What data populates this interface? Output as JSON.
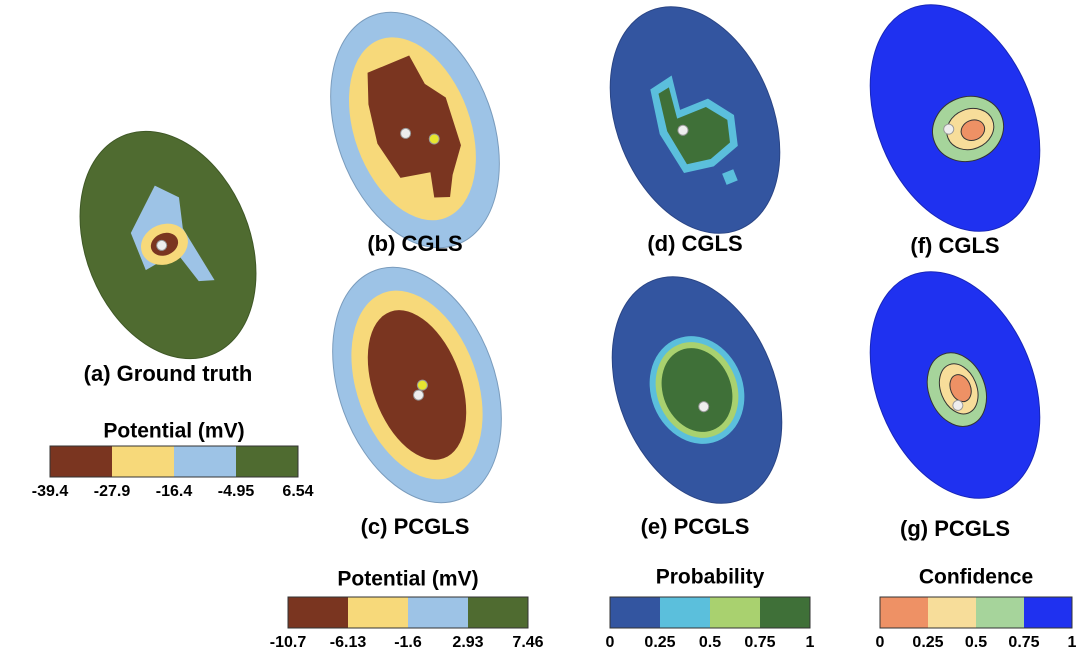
{
  "panels": [
    {
      "label": "(a) Ground truth"
    },
    {
      "label": "(b) CGLS"
    },
    {
      "label": "(c) PCGLS"
    },
    {
      "label": "(d) CGLS"
    },
    {
      "label": "(e) PCGLS"
    },
    {
      "label": "(f) CGLS"
    },
    {
      "label": "(g) PCGLS"
    }
  ],
  "colorbars": [
    {
      "title": "Potential (mV)",
      "colors": [
        "#7a3520",
        "#f7d97a",
        "#9dc3e6",
        "#4f6b30"
      ],
      "ticks": [
        "-39.4",
        "-27.9",
        "-16.4",
        "-4.95",
        "6.54"
      ]
    },
    {
      "title": "Potential (mV)",
      "colors": [
        "#7a3520",
        "#f7d97a",
        "#9dc3e6",
        "#4f6b30"
      ],
      "ticks": [
        "-10.7",
        "-6.13",
        "-1.6",
        "2.93",
        "7.46"
      ]
    },
    {
      "title": "Probability",
      "colors": [
        "#3355a0",
        "#5bbfdc",
        "#a9d16f",
        "#3f7038"
      ],
      "ticks": [
        "0",
        "0.25",
        "0.5",
        "0.75",
        "1"
      ]
    },
    {
      "title": "Confidence",
      "colors": [
        "#ee9165",
        "#f7dd9a",
        "#a6d49b",
        "#1f31f0"
      ],
      "ticks": [
        "0",
        "0.25",
        "0.5",
        "0.75",
        "1"
      ]
    }
  ]
}
